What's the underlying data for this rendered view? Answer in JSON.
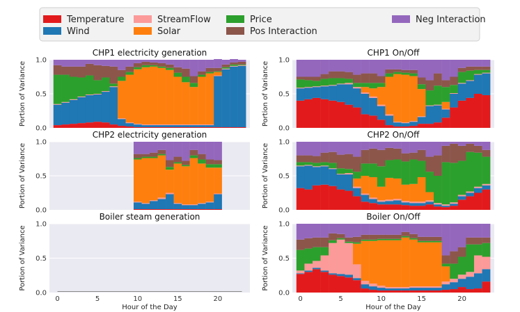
{
  "chart_data": {
    "type": "bar",
    "stacked": true,
    "legend": {
      "placement": "top",
      "entries": [
        {
          "key": "temperature",
          "label": "Temperature",
          "color": "#e31a1c"
        },
        {
          "key": "wind",
          "label": "Wind",
          "color": "#1f77b4"
        },
        {
          "key": "streamflow",
          "label": "StreamFlow",
          "color": "#fb9a99"
        },
        {
          "key": "solar",
          "label": "Solar",
          "color": "#ff7f0e"
        },
        {
          "key": "price",
          "label": "Price",
          "color": "#2ca02c"
        },
        {
          "key": "pos_interaction",
          "label": "Pos Interaction",
          "color": "#8c564b"
        },
        {
          "key": "neg_interaction",
          "label": "Neg Interaction",
          "color": "#9467bd"
        }
      ]
    },
    "xlabel": "Hour of the Day",
    "ylabel": "Portion of Variance",
    "xticks": [
      0,
      5,
      10,
      15,
      20
    ],
    "yticks": [
      "0.0",
      "0.5",
      "1.0"
    ],
    "ylim": [
      0,
      1
    ],
    "hours": [
      0,
      1,
      2,
      3,
      4,
      5,
      6,
      7,
      8,
      9,
      10,
      11,
      12,
      13,
      14,
      15,
      16,
      17,
      18,
      19,
      20,
      21,
      22,
      23
    ],
    "panels": [
      {
        "title": "CHP1 electricity generation",
        "hours": [
          0,
          1,
          2,
          3,
          4,
          5,
          6,
          7,
          8,
          9,
          10,
          11,
          12,
          13,
          14,
          15,
          16,
          17,
          18,
          19,
          20,
          21,
          22,
          23
        ],
        "series": {
          "temperature": [
            0.04,
            0.05,
            0.06,
            0.07,
            0.08,
            0.09,
            0.08,
            0.05,
            0.03,
            0.02,
            0.01,
            0.01,
            0.01,
            0.01,
            0.01,
            0.01,
            0.01,
            0.01,
            0.01,
            0.01,
            0.01,
            0.01,
            0.01,
            0.01
          ],
          "wind": [
            0.3,
            0.32,
            0.35,
            0.38,
            0.4,
            0.4,
            0.45,
            0.55,
            0.1,
            0.05,
            0.04,
            0.03,
            0.03,
            0.03,
            0.03,
            0.03,
            0.03,
            0.03,
            0.03,
            0.03,
            0.75,
            0.85,
            0.89,
            0.9
          ],
          "streamflow": [
            0.01,
            0.01,
            0.01,
            0.01,
            0.01,
            0.01,
            0.01,
            0.01,
            0.01,
            0.01,
            0.01,
            0.01,
            0.01,
            0.01,
            0.01,
            0.01,
            0.01,
            0.01,
            0.01,
            0.01,
            0.01,
            0.01,
            0.01,
            0.01
          ],
          "solar": [
            0,
            0,
            0,
            0,
            0,
            0,
            0,
            0,
            0.55,
            0.7,
            0.8,
            0.84,
            0.85,
            0.83,
            0.8,
            0.7,
            0.62,
            0.55,
            0.7,
            0.75,
            0.05,
            0,
            0,
            0
          ],
          "price": [
            0.43,
            0.4,
            0.33,
            0.28,
            0.28,
            0.2,
            0.2,
            0.04,
            0.06,
            0.04,
            0.03,
            0.03,
            0.02,
            0.02,
            0.03,
            0.06,
            0.08,
            0.06,
            0.03,
            0.02,
            0.01,
            0.02,
            0.02,
            0.01
          ],
          "pos_interaction": [
            0.14,
            0.12,
            0.15,
            0.16,
            0.17,
            0.22,
            0.17,
            0.25,
            0.1,
            0.08,
            0.06,
            0.05,
            0.04,
            0.05,
            0.05,
            0.08,
            0.12,
            0.1,
            0.05,
            0.06,
            0.05,
            0.04,
            0.03,
            0.04
          ],
          "neg_interaction": [
            0.08,
            0.1,
            0.1,
            0.1,
            0.06,
            0.08,
            0.09,
            0.1,
            0.15,
            0.1,
            0.05,
            0.03,
            0.04,
            0.05,
            0.07,
            0.11,
            0.13,
            0.24,
            0.17,
            0.12,
            0.13,
            0.07,
            0.05,
            0.03
          ]
        }
      },
      {
        "title": "CHP1 On/Off",
        "hours": [
          0,
          1,
          2,
          3,
          4,
          5,
          6,
          7,
          8,
          9,
          10,
          11,
          12,
          13,
          14,
          15,
          16,
          17,
          18,
          19,
          20,
          21,
          22,
          23
        ],
        "series": {
          "temperature": [
            0.4,
            0.42,
            0.44,
            0.42,
            0.4,
            0.38,
            0.34,
            0.3,
            0.2,
            0.18,
            0.12,
            0.04,
            0.02,
            0.02,
            0.03,
            0.06,
            0.06,
            0.08,
            0.15,
            0.3,
            0.4,
            0.44,
            0.5,
            0.48
          ],
          "wind": [
            0.18,
            0.17,
            0.16,
            0.19,
            0.22,
            0.26,
            0.3,
            0.28,
            0.3,
            0.26,
            0.2,
            0.14,
            0.06,
            0.05,
            0.06,
            0.1,
            0.26,
            0.25,
            0.12,
            0.2,
            0.25,
            0.25,
            0.28,
            0.32
          ],
          "streamflow": [
            0.01,
            0.01,
            0.01,
            0.01,
            0.01,
            0.01,
            0.02,
            0.02,
            0.02,
            0.02,
            0.02,
            0.02,
            0.01,
            0.01,
            0.01,
            0.01,
            0.01,
            0.01,
            0.01,
            0.01,
            0.01,
            0.01,
            0.01,
            0.01
          ],
          "solar": [
            0,
            0,
            0,
            0,
            0,
            0,
            0,
            0,
            0.08,
            0.12,
            0.26,
            0.55,
            0.7,
            0.7,
            0.66,
            0.4,
            0,
            0,
            0.1,
            0,
            0,
            0,
            0,
            0
          ],
          "price": [
            0.12,
            0.1,
            0.08,
            0.1,
            0.1,
            0.08,
            0.06,
            0.06,
            0.06,
            0.08,
            0.06,
            0.05,
            0.03,
            0.03,
            0.04,
            0.07,
            0.22,
            0.28,
            0.22,
            0.12,
            0.16,
            0.14,
            0.06,
            0.04
          ],
          "pos_interaction": [
            0.04,
            0.05,
            0.06,
            0.07,
            0.1,
            0.1,
            0.1,
            0.12,
            0.14,
            0.14,
            0.1,
            0.06,
            0.04,
            0.04,
            0.05,
            0.1,
            0.15,
            0.18,
            0.1,
            0.12,
            0.06,
            0.06,
            0.05,
            0.05
          ],
          "neg_interaction": [
            0.25,
            0.25,
            0.25,
            0.21,
            0.17,
            0.17,
            0.18,
            0.22,
            0.2,
            0.2,
            0.24,
            0.14,
            0.14,
            0.15,
            0.15,
            0.26,
            0.3,
            0.2,
            0.3,
            0.25,
            0.12,
            0.1,
            0.1,
            0.1
          ]
        }
      },
      {
        "title": "CHP2 electricity generation",
        "hours": [
          10,
          11,
          12,
          13,
          14,
          15,
          16,
          17,
          18,
          19,
          20
        ],
        "series": {
          "temperature": [
            0.01,
            0.01,
            0.01,
            0.01,
            0.01,
            0.01,
            0.01,
            0.01,
            0.01,
            0.01,
            0.01
          ],
          "wind": [
            0.1,
            0.08,
            0.12,
            0.15,
            0.22,
            0.08,
            0.06,
            0.06,
            0.08,
            0.1,
            0.22
          ],
          "streamflow": [
            0.01,
            0.01,
            0.01,
            0.02,
            0.02,
            0.01,
            0.01,
            0.01,
            0.01,
            0.01,
            0.01
          ],
          "solar": [
            0.62,
            0.66,
            0.62,
            0.62,
            0.34,
            0.58,
            0.56,
            0.68,
            0.58,
            0.5,
            0.38
          ],
          "price": [
            0.02,
            0.02,
            0.02,
            0.02,
            0.04,
            0.02,
            0.02,
            0.04,
            0.06,
            0.05,
            0.05
          ],
          "pos_interaction": [
            0.06,
            0.04,
            0.06,
            0.06,
            0.1,
            0.08,
            0.06,
            0.08,
            0.08,
            0.07,
            0.06
          ],
          "neg_interaction": [
            0.18,
            0.18,
            0.16,
            0.12,
            0.27,
            0.22,
            0.28,
            0.12,
            0.18,
            0.26,
            0.27
          ]
        }
      },
      {
        "title": "CHP2 On/Off",
        "hours": [
          0,
          1,
          2,
          3,
          4,
          5,
          6,
          7,
          8,
          9,
          10,
          11,
          12,
          13,
          14,
          15,
          16,
          17,
          18,
          19,
          20,
          21,
          22,
          23
        ],
        "series": {
          "temperature": [
            0.32,
            0.3,
            0.36,
            0.37,
            0.35,
            0.3,
            0.28,
            0.2,
            0.12,
            0.1,
            0.08,
            0.08,
            0.08,
            0.07,
            0.06,
            0.06,
            0.08,
            0.05,
            0.04,
            0.06,
            0.15,
            0.2,
            0.25,
            0.3
          ],
          "wind": [
            0.32,
            0.35,
            0.27,
            0.27,
            0.25,
            0.22,
            0.24,
            0.12,
            0.1,
            0.06,
            0.04,
            0.05,
            0.06,
            0.04,
            0.04,
            0.04,
            0.04,
            0.03,
            0.02,
            0.03,
            0.05,
            0.05,
            0.07,
            0.06
          ],
          "streamflow": [
            0.01,
            0.01,
            0.01,
            0.01,
            0.01,
            0.01,
            0.02,
            0.02,
            0.02,
            0.02,
            0.02,
            0.02,
            0.02,
            0.02,
            0.02,
            0.02,
            0.02,
            0.02,
            0.02,
            0.02,
            0.02,
            0.02,
            0.02,
            0.02
          ],
          "solar": [
            0,
            0,
            0,
            0,
            0,
            0,
            0,
            0.12,
            0.26,
            0.3,
            0.2,
            0.32,
            0.3,
            0.24,
            0.26,
            0.36,
            0.12,
            0,
            0,
            0,
            0,
            0,
            0,
            0
          ],
          "price": [
            0.05,
            0.04,
            0.05,
            0.05,
            0.08,
            0.08,
            0.06,
            0.1,
            0.18,
            0.2,
            0.3,
            0.26,
            0.28,
            0.34,
            0.36,
            0.24,
            0.3,
            0.4,
            0.62,
            0.58,
            0.5,
            0.58,
            0.5,
            0.4
          ],
          "pos_interaction": [
            0.1,
            0.1,
            0.1,
            0.14,
            0.16,
            0.2,
            0.22,
            0.22,
            0.2,
            0.22,
            0.24,
            0.18,
            0.16,
            0.12,
            0.1,
            0.16,
            0.22,
            0.3,
            0.24,
            0.28,
            0.22,
            0.12,
            0.1,
            0.1
          ],
          "neg_interaction": [
            0.2,
            0.2,
            0.21,
            0.16,
            0.15,
            0.19,
            0.18,
            0.22,
            0.12,
            0.1,
            0.12,
            0.09,
            0.1,
            0.17,
            0.16,
            0.12,
            0.22,
            0.2,
            0.06,
            0.03,
            0.06,
            0.03,
            0.06,
            0.12
          ]
        }
      },
      {
        "title": "Boiler steam generation",
        "hours": [],
        "series": {}
      },
      {
        "title": "Boiler On/Off",
        "hours": [
          0,
          1,
          2,
          3,
          4,
          5,
          6,
          7,
          8,
          9,
          10,
          11,
          12,
          13,
          14,
          15,
          16,
          17,
          18,
          19,
          20,
          21,
          22,
          23
        ],
        "series": {
          "temperature": [
            0.27,
            0.3,
            0.34,
            0.3,
            0.26,
            0.24,
            0.22,
            0.18,
            0.06,
            0.04,
            0.03,
            0.03,
            0.03,
            0.03,
            0.03,
            0.03,
            0.03,
            0.03,
            0.04,
            0.05,
            0.08,
            0.05,
            0.06,
            0.16
          ],
          "wind": [
            0.01,
            0.02,
            0.02,
            0.02,
            0.02,
            0.03,
            0.04,
            0.03,
            0.06,
            0.05,
            0.04,
            0.03,
            0.03,
            0.03,
            0.04,
            0.04,
            0.04,
            0.04,
            0.08,
            0.1,
            0.12,
            0.18,
            0.22,
            0.18
          ],
          "streamflow": [
            0.04,
            0.1,
            0.1,
            0.22,
            0.44,
            0.5,
            0.46,
            0.2,
            0.05,
            0.04,
            0.03,
            0.02,
            0.02,
            0.02,
            0.02,
            0.02,
            0.02,
            0.02,
            0.04,
            0.05,
            0.06,
            0.07,
            0.26,
            0.18
          ],
          "solar": [
            0,
            0,
            0,
            0,
            0,
            0,
            0,
            0.3,
            0.58,
            0.62,
            0.66,
            0.68,
            0.68,
            0.72,
            0.68,
            0.64,
            0.64,
            0.64,
            0.22,
            0,
            0,
            0,
            0,
            0
          ],
          "price": [
            0.3,
            0.22,
            0.2,
            0.12,
            0.04,
            0.02,
            0.02,
            0.02,
            0.02,
            0.02,
            0.02,
            0.02,
            0.02,
            0.02,
            0.02,
            0.02,
            0.02,
            0.02,
            0.04,
            0.22,
            0.26,
            0.4,
            0.16,
            0.2
          ],
          "pos_interaction": [
            0.15,
            0.15,
            0.14,
            0.14,
            0.1,
            0.06,
            0.06,
            0.08,
            0.07,
            0.07,
            0.06,
            0.06,
            0.06,
            0.06,
            0.06,
            0.06,
            0.06,
            0.06,
            0.12,
            0.18,
            0.14,
            0.1,
            0.1,
            0.08
          ],
          "neg_interaction": [
            0.23,
            0.21,
            0.2,
            0.2,
            0.14,
            0.15,
            0.2,
            0.19,
            0.16,
            0.16,
            0.16,
            0.16,
            0.16,
            0.12,
            0.15,
            0.19,
            0.19,
            0.19,
            0.46,
            0.4,
            0.34,
            0.2,
            0.2,
            0.2
          ]
        }
      }
    ]
  }
}
